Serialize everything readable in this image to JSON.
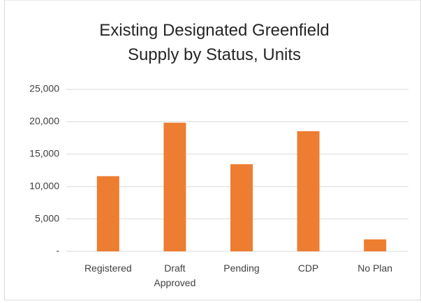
{
  "chart_data": {
    "type": "bar",
    "title": "Existing Designated Greenfield Supply by Status, Units",
    "categories": [
      "Registered",
      "Draft Approved",
      "Pending",
      "CDP",
      "No Plan"
    ],
    "values": [
      11600,
      19850,
      13450,
      18550,
      1850
    ],
    "color": "#ed7d31",
    "ylim": [
      0,
      25000
    ],
    "yticks": [
      {
        "value": 0,
        "label": "-"
      },
      {
        "value": 5000,
        "label": "5,000"
      },
      {
        "value": 10000,
        "label": "10,000"
      },
      {
        "value": 15000,
        "label": "15,000"
      },
      {
        "value": 20000,
        "label": "20,000"
      },
      {
        "value": 25000,
        "label": "25,000"
      }
    ],
    "grid": true
  }
}
